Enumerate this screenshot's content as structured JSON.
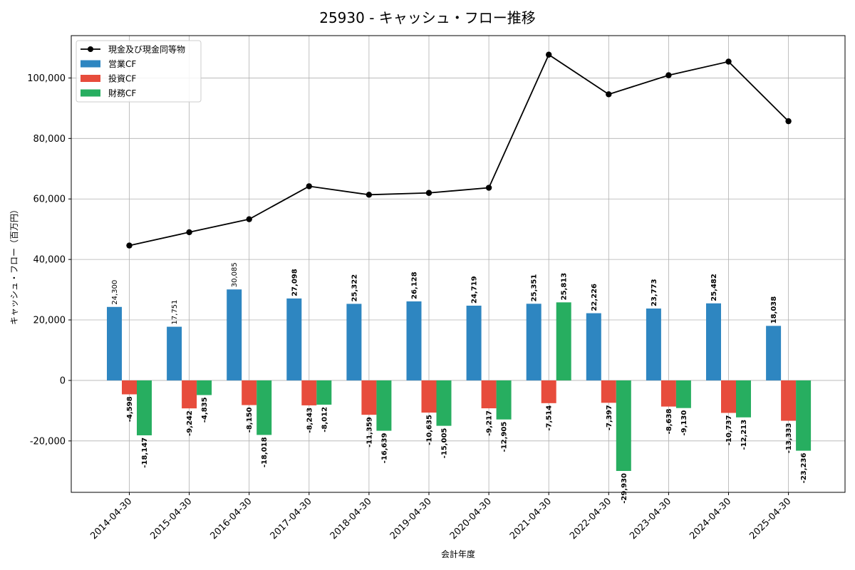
{
  "chart_data": {
    "type": "bar",
    "title": "25930 - キャッシュ・フロー推移",
    "xlabel": "会計年度",
    "ylabel": "キャッシュ・フロー（百万円）",
    "ylim": [
      -37000,
      114000
    ],
    "yticks": [
      -20000,
      0,
      20000,
      40000,
      60000,
      80000,
      100000
    ],
    "ytick_labels": [
      "-20,000",
      "0",
      "20,000",
      "40,000",
      "60,000",
      "80,000",
      "100,000"
    ],
    "grid": true,
    "legend_position": "top-left",
    "categories": [
      "2014-04-30",
      "2015-04-30",
      "2016-04-30",
      "2017-04-30",
      "2018-04-30",
      "2019-04-30",
      "2020-04-30",
      "2021-04-30",
      "2022-04-30",
      "2023-04-30",
      "2024-04-30",
      "2025-04-30"
    ],
    "series": [
      {
        "name": "営業CF",
        "kind": "bar",
        "color": "#2e86c1",
        "values": [
          24300,
          17751,
          30085,
          27098,
          25322,
          26128,
          24719,
          25351,
          22226,
          23773,
          25482,
          18038
        ],
        "labels": [
          "24,300",
          "17,751",
          "30,085",
          "27,098",
          "25,322",
          "26,128",
          "24,719",
          "25,351",
          "22,226",
          "23,773",
          "25,482",
          "18,038"
        ]
      },
      {
        "name": "投資CF",
        "kind": "bar",
        "color": "#e74c3c",
        "values": [
          -4598,
          -9242,
          -8150,
          -8243,
          -11359,
          -10635,
          -9217,
          -7514,
          -7397,
          -8638,
          -10737,
          -13333
        ],
        "labels": [
          "-4,598",
          "-9,242",
          "-8,150",
          "-8,243",
          "-11,359",
          "-10,635",
          "-9,217",
          "-7,514",
          "-7,397",
          "-8,638",
          "-10,737",
          "-13,333"
        ]
      },
      {
        "name": "財務CF",
        "kind": "bar",
        "color": "#27ae60",
        "values": [
          -18147,
          -4835,
          -18018,
          -8012,
          -16639,
          -15005,
          -12905,
          25813,
          -29930,
          -9130,
          -12213,
          -23236
        ],
        "labels": [
          "-18,147",
          "-4,835",
          "-18,018",
          "-8,012",
          "-16,639",
          "-15,005",
          "-12,905",
          "25,813",
          "-29,930",
          "-9,130",
          "-12,213",
          "-23,236"
        ]
      },
      {
        "name": "現金及び現金同等物",
        "kind": "line",
        "color": "#000000",
        "values": [
          44600,
          49000,
          53300,
          64200,
          61400,
          62000,
          63700,
          107700,
          94600,
          100900,
          105400,
          85700
        ]
      }
    ]
  }
}
